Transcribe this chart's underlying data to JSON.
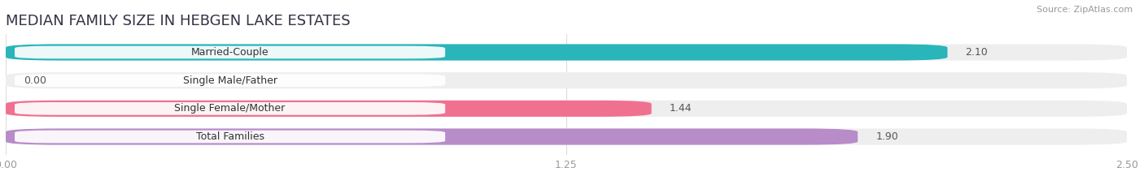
{
  "title": "MEDIAN FAMILY SIZE IN HEBGEN LAKE ESTATES",
  "source": "Source: ZipAtlas.com",
  "categories": [
    "Married-Couple",
    "Single Male/Father",
    "Single Female/Mother",
    "Total Families"
  ],
  "values": [
    2.1,
    0.0,
    1.44,
    1.9
  ],
  "bar_colors": [
    "#29b5ba",
    "#a0b4e8",
    "#f07090",
    "#b88cc8"
  ],
  "track_color": "#eeeeee",
  "xlim": [
    0,
    2.5
  ],
  "xticks": [
    0.0,
    1.25,
    2.5
  ],
  "xtick_labels": [
    "0.00",
    "1.25",
    "2.50"
  ],
  "bar_height": 0.58,
  "background_color": "#ffffff",
  "title_fontsize": 13,
  "label_fontsize": 9,
  "value_fontsize": 9,
  "tick_fontsize": 9
}
